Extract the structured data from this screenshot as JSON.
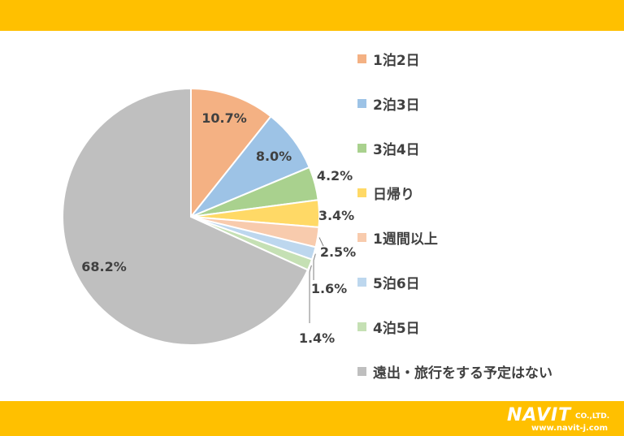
{
  "chart_data": {
    "type": "pie",
    "start_angle": "12 o'clock",
    "direction": "clockwise",
    "labels": [
      "1泊2日",
      "2泊3日",
      "3泊4日",
      "日帰り",
      "1週間以上",
      "5泊6日",
      "4泊5日",
      "遠出・旅行をする予定はない"
    ],
    "values": [
      10.7,
      8.0,
      4.2,
      3.4,
      2.5,
      1.6,
      1.4,
      68.2
    ],
    "value_labels": [
      "10.7%",
      "8.0%",
      "4.2%",
      "3.4%",
      "2.5%",
      "1.6%",
      "1.4%",
      "68.2%"
    ],
    "colors": [
      "#F4B183",
      "#9DC3E6",
      "#A9D18E",
      "#FFD966",
      "#F8CBAD",
      "#BDD7EE",
      "#C5E0B4",
      "#BFBFBF"
    ],
    "legend_position": "right"
  },
  "logo": {
    "brand": "NAVIT",
    "suffix": "CO.,LTD.",
    "url": "www.navit-j.com"
  },
  "theme": {
    "band_color": "#FFC000"
  }
}
